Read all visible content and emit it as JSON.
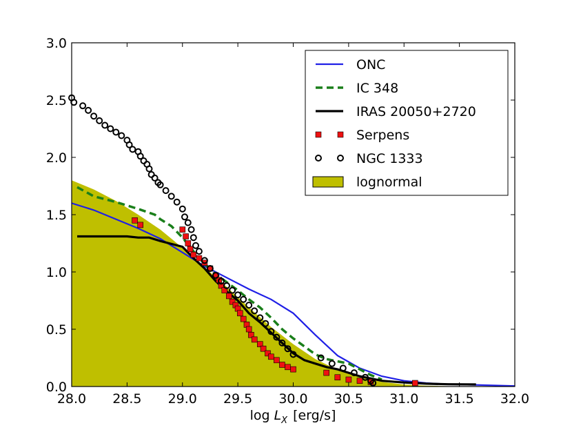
{
  "chart_data": {
    "type": "line",
    "title": "",
    "xlabel": "log L_X [erg/s]",
    "xlabel_parts": {
      "prefix": "log ",
      "symbol": "L",
      "subscript": "X",
      "suffix": "[erg/s]"
    },
    "ylabel": "",
    "xlim": [
      28.0,
      32.0
    ],
    "ylim": [
      0.0,
      3.0
    ],
    "xticks": [
      28.0,
      28.5,
      29.0,
      29.5,
      30.0,
      30.5,
      31.0,
      31.5,
      32.0
    ],
    "yticks": [
      0.0,
      0.5,
      1.0,
      1.5,
      2.0,
      2.5,
      3.0
    ],
    "xtick_labels": [
      "28.0",
      "28.5",
      "29.0",
      "29.5",
      "30.0",
      "30.5",
      "31.0",
      "31.5",
      "32.0"
    ],
    "ytick_labels": [
      "0.0",
      "0.5",
      "1.0",
      "1.5",
      "2.0",
      "2.5",
      "3.0"
    ],
    "grid": false,
    "legend_position": "top-right",
    "series": [
      {
        "name": "ONC",
        "style": "solid-line",
        "color": "#1f1fe6",
        "x": [
          28.0,
          28.2,
          28.4,
          28.6,
          28.8,
          29.0,
          29.2,
          29.4,
          29.6,
          29.8,
          30.0,
          30.2,
          30.4,
          30.6,
          30.8,
          31.0,
          31.2,
          31.4,
          31.6,
          31.8,
          32.0
        ],
        "y": [
          1.6,
          1.54,
          1.46,
          1.38,
          1.29,
          1.17,
          1.05,
          0.95,
          0.85,
          0.76,
          0.64,
          0.45,
          0.27,
          0.16,
          0.09,
          0.05,
          0.03,
          0.02,
          0.015,
          0.01,
          0.005
        ]
      },
      {
        "name": "IC 348",
        "style": "dashed-line",
        "color": "#1a7f1a",
        "x": [
          28.05,
          28.2,
          28.4,
          28.6,
          28.75,
          28.8,
          28.9,
          29.0,
          29.1,
          29.2,
          29.3,
          29.4,
          29.5,
          29.6,
          29.7,
          29.8,
          29.9,
          30.0,
          30.1,
          30.2,
          30.3,
          30.4,
          30.5,
          30.6,
          30.7,
          30.8
        ],
        "y": [
          1.74,
          1.66,
          1.61,
          1.55,
          1.5,
          1.46,
          1.4,
          1.3,
          1.18,
          1.07,
          0.98,
          0.91,
          0.84,
          0.76,
          0.69,
          0.6,
          0.5,
          0.42,
          0.35,
          0.28,
          0.24,
          0.22,
          0.2,
          0.15,
          0.1,
          0.06
        ]
      },
      {
        "name": "IRAS 20050+2720",
        "style": "thick-line",
        "color": "#000000",
        "x": [
          28.05,
          28.3,
          28.5,
          28.6,
          28.7,
          28.8,
          29.0,
          29.1,
          29.2,
          29.3,
          29.4,
          29.5,
          29.6,
          29.7,
          29.8,
          29.9,
          30.0,
          30.1,
          30.2,
          30.3,
          30.4,
          30.5,
          30.6,
          30.8,
          31.0,
          31.2,
          31.4,
          31.65
        ],
        "y": [
          1.31,
          1.31,
          1.31,
          1.3,
          1.3,
          1.27,
          1.22,
          1.12,
          1.03,
          0.92,
          0.83,
          0.75,
          0.64,
          0.56,
          0.47,
          0.38,
          0.29,
          0.23,
          0.2,
          0.17,
          0.15,
          0.12,
          0.09,
          0.05,
          0.035,
          0.025,
          0.02,
          0.018
        ]
      },
      {
        "name": "Serpens",
        "style": "square-markers",
        "color": "#ee1111",
        "x": [
          28.57,
          28.62,
          29.0,
          29.03,
          29.05,
          29.07,
          29.1,
          29.15,
          29.2,
          29.25,
          29.3,
          29.33,
          29.35,
          29.38,
          29.42,
          29.45,
          29.48,
          29.5,
          29.52,
          29.55,
          29.58,
          29.6,
          29.62,
          29.65,
          29.7,
          29.73,
          29.77,
          29.8,
          29.85,
          29.9,
          29.95,
          30.0,
          30.3,
          30.4,
          30.5,
          30.6,
          30.7,
          31.1
        ],
        "y": [
          1.45,
          1.41,
          1.37,
          1.31,
          1.25,
          1.2,
          1.15,
          1.12,
          1.08,
          1.03,
          0.97,
          0.93,
          0.88,
          0.84,
          0.79,
          0.74,
          0.71,
          0.68,
          0.64,
          0.59,
          0.54,
          0.5,
          0.45,
          0.41,
          0.37,
          0.33,
          0.29,
          0.26,
          0.23,
          0.19,
          0.17,
          0.15,
          0.12,
          0.08,
          0.06,
          0.05,
          0.04,
          0.03
        ]
      },
      {
        "name": "NGC 1333",
        "style": "circle-markers",
        "color": "#000000",
        "x": [
          28.0,
          28.02,
          28.1,
          28.15,
          28.2,
          28.25,
          28.3,
          28.35,
          28.4,
          28.45,
          28.5,
          28.52,
          28.55,
          28.6,
          28.62,
          28.65,
          28.68,
          28.7,
          28.72,
          28.75,
          28.78,
          28.8,
          28.85,
          28.9,
          28.95,
          29.0,
          29.02,
          29.05,
          29.08,
          29.1,
          29.12,
          29.15,
          29.2,
          29.25,
          29.3,
          29.35,
          29.4,
          29.45,
          29.5,
          29.55,
          29.6,
          29.65,
          29.7,
          29.75,
          29.8,
          29.85,
          29.9,
          29.95,
          30.0,
          30.25,
          30.35,
          30.45,
          30.55,
          30.65,
          30.7,
          30.72
        ],
        "y": [
          2.52,
          2.48,
          2.45,
          2.41,
          2.36,
          2.32,
          2.28,
          2.25,
          2.22,
          2.19,
          2.15,
          2.11,
          2.07,
          2.05,
          2.01,
          1.97,
          1.94,
          1.9,
          1.85,
          1.82,
          1.78,
          1.76,
          1.71,
          1.66,
          1.61,
          1.55,
          1.48,
          1.43,
          1.37,
          1.3,
          1.23,
          1.18,
          1.1,
          1.03,
          0.97,
          0.92,
          0.88,
          0.84,
          0.8,
          0.76,
          0.71,
          0.66,
          0.6,
          0.55,
          0.48,
          0.43,
          0.38,
          0.33,
          0.28,
          0.25,
          0.2,
          0.16,
          0.12,
          0.08,
          0.05,
          0.03
        ]
      },
      {
        "name": "lognormal",
        "style": "filled-area",
        "color": "#bfbf00",
        "x": [
          28.0,
          28.2,
          28.4,
          28.6,
          28.8,
          29.0,
          29.2,
          29.4,
          29.6,
          29.8,
          30.0,
          30.2,
          30.4,
          30.6,
          30.8,
          31.0,
          31.2,
          31.4,
          31.6,
          31.8,
          32.0
        ],
        "y": [
          1.8,
          1.72,
          1.62,
          1.5,
          1.37,
          1.21,
          1.04,
          0.87,
          0.69,
          0.52,
          0.37,
          0.24,
          0.145,
          0.08,
          0.04,
          0.018,
          0.008,
          0.003,
          0.001,
          0.0004,
          0.0001
        ]
      }
    ]
  }
}
